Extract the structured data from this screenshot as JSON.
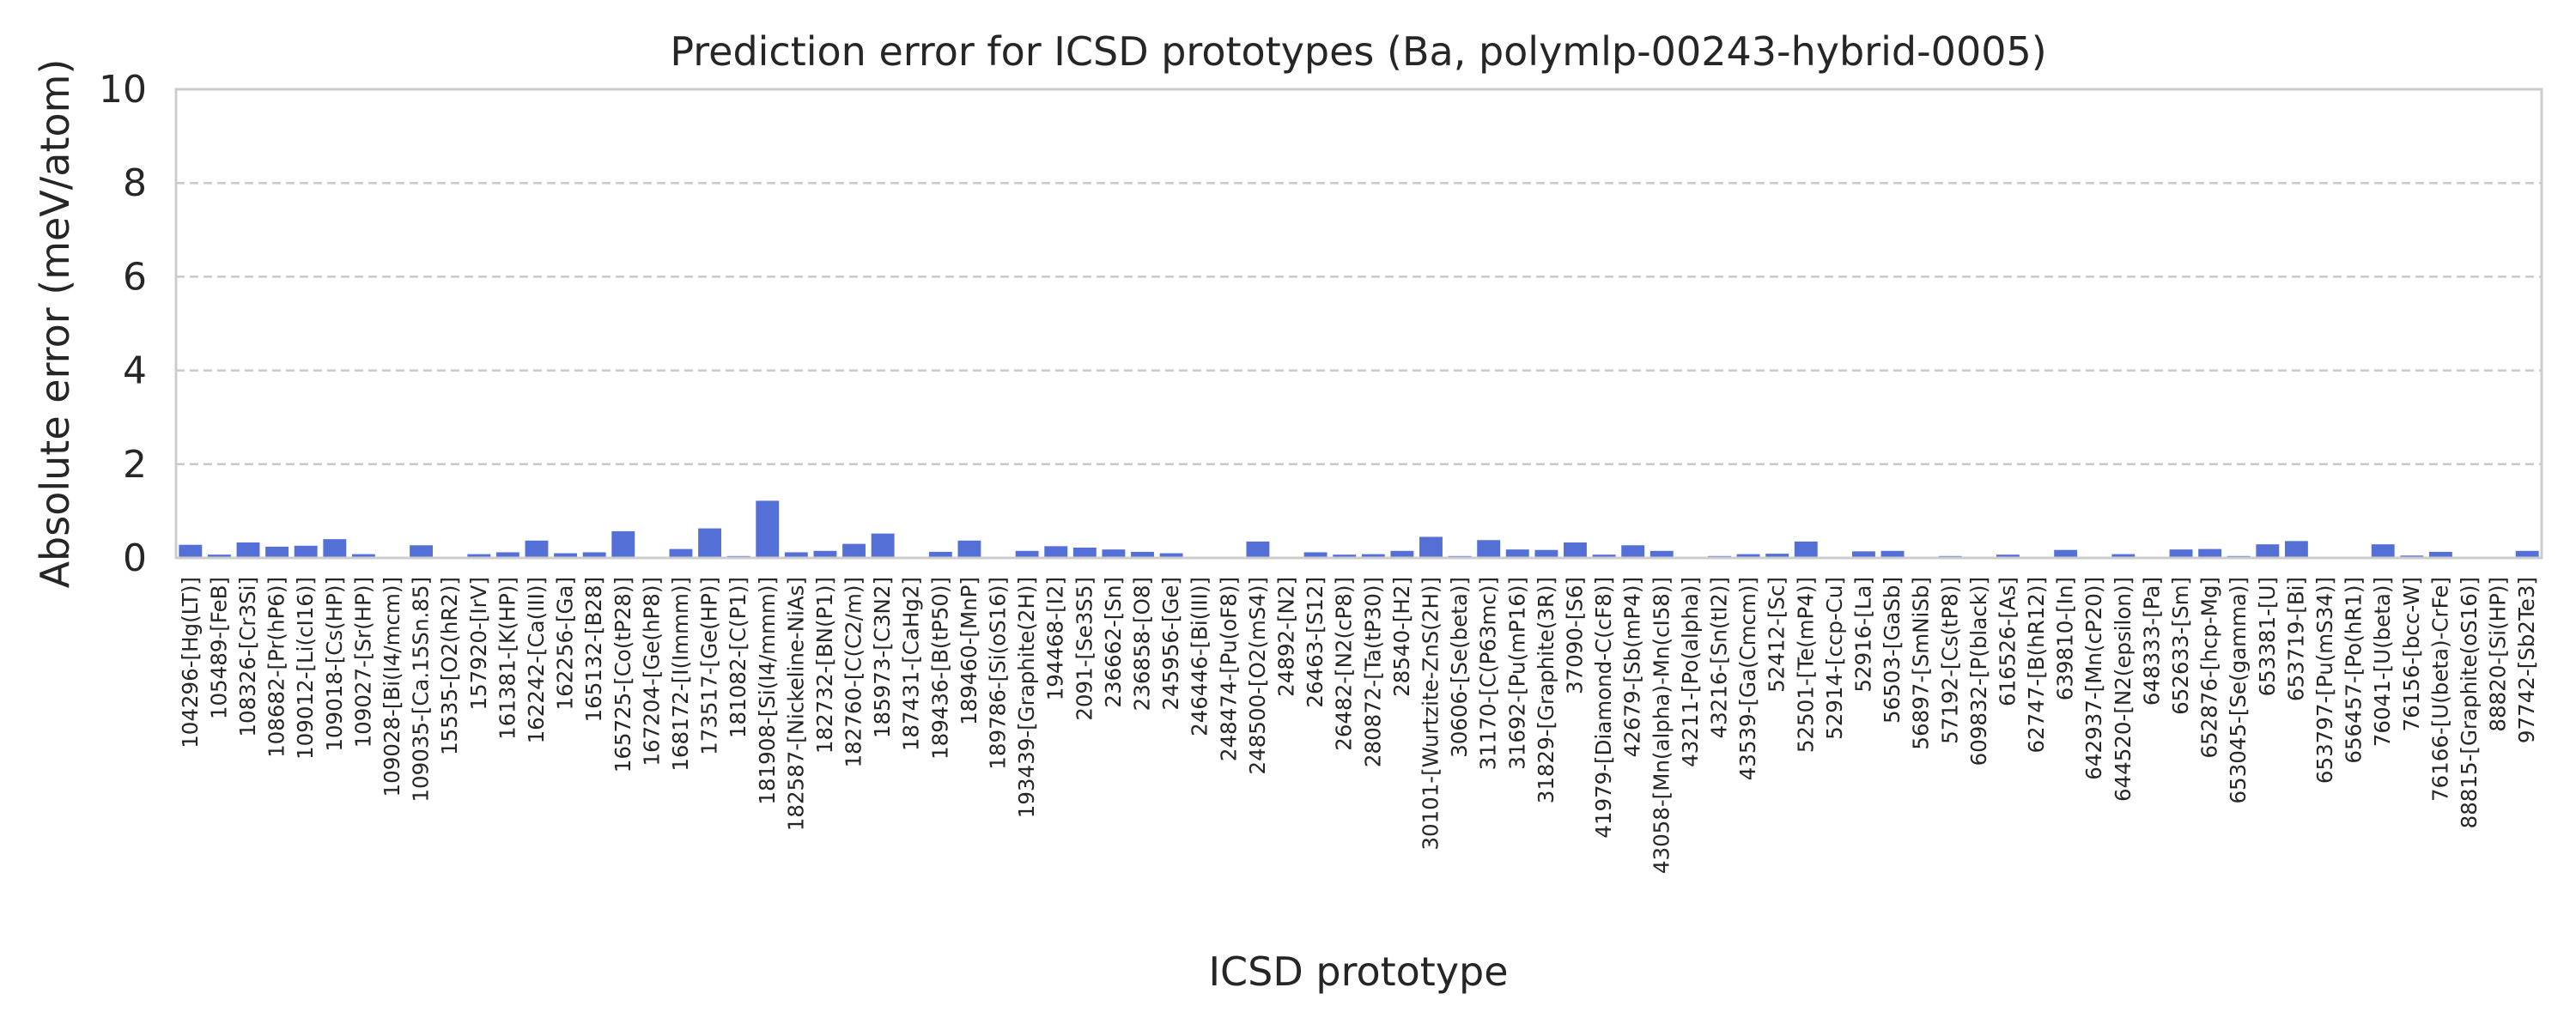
{
  "chart_data": {
    "type": "bar",
    "title": "Prediction error for ICSD prototypes (Ba, polymlp-00243-hybrid-0005)",
    "xlabel": "ICSD prototype",
    "ylabel": "Absolute error (meV/atom)",
    "ylim": [
      0,
      10
    ],
    "yticks": [
      0,
      2,
      4,
      6,
      8,
      10
    ],
    "grid": "y",
    "bar_color": "#5470d6",
    "categories": [
      "104296-[Hg(LT)]",
      "105489-[FeB]",
      "108326-[Cr3Si]",
      "108682-[Pr(hP6)]",
      "109012-[Li(cI16)]",
      "109018-[Cs(HP)]",
      "109027-[Sr(HP)]",
      "109028-[Bi(I4/mcm)]",
      "109035-[Ca.15Sn.85]",
      "15535-[O2(hR2)]",
      "157920-[IrV]",
      "161381-[K(HP)]",
      "162242-[Ca(III)]",
      "162256-[Ga]",
      "165132-[B28]",
      "165725-[Co(tP28)]",
      "167204-[Ge(hP8)]",
      "168172-[I(Immm)]",
      "173517-[Ge(HP)]",
      "181082-[C(P1)]",
      "181908-[Si(I4/mmm)]",
      "182587-[Nickeline-NiAs]",
      "182732-[BN(P1)]",
      "182760-[C(C2/m)]",
      "185973-[C3N2]",
      "187431-[CaHg2]",
      "189436-[B(tP50)]",
      "189460-[MnP]",
      "189786-[Si(oS16)]",
      "193439-[Graphite(2H)]",
      "194468-[I2]",
      "2091-[Se3S5]",
      "236662-[Sn]",
      "236858-[O8]",
      "245956-[Ge]",
      "246446-[Bi(III)]",
      "248474-[Pu(oF8)]",
      "248500-[O2(mS4)]",
      "24892-[N2]",
      "26463-[S12]",
      "26482-[N2(cP8)]",
      "280872-[Ta(tP30)]",
      "28540-[H2]",
      "30101-[Wurtzite-ZnS(2H)]",
      "30606-[Se(beta)]",
      "31170-[C(P63mc)]",
      "31692-[Pu(mP16)]",
      "31829-[Graphite(3R)]",
      "37090-[S6]",
      "41979-[Diamond-C(cF8)]",
      "42679-[Sb(mP4)]",
      "43058-[Mn(alpha)-Mn(cI58)]",
      "43211-[Po(alpha)]",
      "43216-[Sn(tI2)]",
      "43539-[Ga(Cmcm)]",
      "52412-[Sc]",
      "52501-[Te(mP4)]",
      "52914-[ccp-Cu]",
      "52916-[La]",
      "56503-[GaSb]",
      "56897-[SmNiSb]",
      "57192-[Cs(tP8)]",
      "609832-[P(black)]",
      "616526-[As]",
      "62747-[B(hR12)]",
      "639810-[In]",
      "642937-[Mn(cP20)]",
      "644520-[N2(epsilon)]",
      "648333-[Pa]",
      "652633-[Sm]",
      "652876-[hcp-Mg]",
      "653045-[Se(gamma)]",
      "653381-[U]",
      "653719-[Bi]",
      "653797-[Pu(mS34)]",
      "656457-[Po(hR1)]",
      "76041-[U(beta)]",
      "76156-[bcc-W]",
      "76166-[U(beta)-CrFe]",
      "88815-[Graphite(oS16)]",
      "88820-[Si(HP)]",
      "97742-[Sb2Te3]"
    ],
    "values": [
      0.28,
      0.07,
      0.33,
      0.24,
      0.26,
      0.4,
      0.08,
      0.02,
      0.27,
      0.02,
      0.08,
      0.12,
      0.37,
      0.1,
      0.12,
      0.57,
      0.02,
      0.19,
      0.63,
      0.04,
      1.22,
      0.12,
      0.15,
      0.3,
      0.52,
      0.01,
      0.13,
      0.37,
      0.01,
      0.15,
      0.25,
      0.22,
      0.18,
      0.13,
      0.1,
      0.01,
      0.02,
      0.35,
      0.01,
      0.12,
      0.07,
      0.08,
      0.15,
      0.45,
      0.04,
      0.38,
      0.18,
      0.17,
      0.33,
      0.07,
      0.27,
      0.15,
      0.01,
      0.04,
      0.08,
      0.09,
      0.35,
      0.02,
      0.14,
      0.15,
      0.02,
      0.04,
      0.02,
      0.07,
      0.01,
      0.17,
      0.02,
      0.08,
      0.02,
      0.18,
      0.19,
      0.04,
      0.29,
      0.36,
      0.02,
      0.01,
      0.29,
      0.05,
      0.13,
      0.01,
      0.02,
      0.15
    ]
  }
}
